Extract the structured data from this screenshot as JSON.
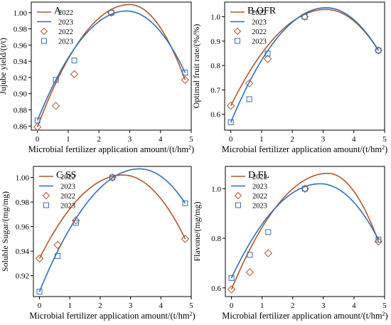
{
  "figure": {
    "colors": {
      "2022": "#b5562a",
      "2023": "#2f6fbd",
      "axis": "#000000"
    }
  },
  "chart_data": [
    {
      "id": "A",
      "type": "scatter",
      "panel_label": "A",
      "xlabel": "Microbial fertilizer application amount/(t/hm²)",
      "ylabel": "Jujube yield/(t/t)",
      "xlim": [
        -0.2,
        5
      ],
      "ylim": [
        0.855,
        1.013
      ],
      "xticks": [
        0,
        1,
        2,
        3,
        4,
        5
      ],
      "yticks": [
        0.86,
        0.88,
        0.9,
        0.92,
        0.94,
        0.96,
        0.98,
        1.0
      ],
      "ytick_labels": [
        "0.86",
        "0.88",
        "0.90",
        "0.92",
        "0.94",
        "0.96",
        "0.98",
        "1.00"
      ],
      "legend": {
        "position": "top-left",
        "entries": [
          "2022",
          "2023",
          "2022",
          "2023"
        ]
      },
      "x": [
        0,
        0.6,
        1.2,
        2.4,
        4.8
      ],
      "series": [
        {
          "name": "2022",
          "marker": "diamond",
          "fit": "line",
          "values": [
            0.859,
            0.885,
            0.924,
            1.0,
            0.917
          ]
        },
        {
          "name": "2023",
          "marker": "square",
          "fit": "line",
          "values": [
            0.867,
            0.917,
            0.941,
            1.0,
            0.926
          ]
        }
      ],
      "fit_peaks": [
        {
          "name": "2022",
          "x": 3.0,
          "y": 1.01
        },
        {
          "name": "2023",
          "x": 2.9,
          "y": 1.002
        }
      ]
    },
    {
      "id": "B",
      "type": "scatter",
      "panel_label": "B OFR",
      "xlabel": "Microbial fertilizer application amount/(t/hm²)",
      "ylabel": "Optimal fruit rate/(%/%)",
      "xlim": [
        -0.2,
        5
      ],
      "ylim": [
        0.535,
        1.06
      ],
      "xticks": [
        0,
        1,
        2,
        3,
        4,
        5
      ],
      "yticks": [
        0.6,
        0.7,
        0.8,
        0.9,
        1.0
      ],
      "ytick_labels": [
        "0.6",
        "0.7",
        "0.8",
        "0.9",
        "1.0"
      ],
      "legend": {
        "position": "top-left",
        "entries": [
          "2022",
          "2023",
          "2022",
          "2023"
        ]
      },
      "x": [
        0,
        0.6,
        1.2,
        2.4,
        4.8
      ],
      "series": [
        {
          "name": "2022",
          "marker": "diamond",
          "fit": "line",
          "values": [
            0.635,
            0.727,
            0.827,
            1.0,
            0.862
          ]
        },
        {
          "name": "2023",
          "marker": "square",
          "fit": "line",
          "values": [
            0.567,
            0.662,
            0.849,
            1.0,
            0.862
          ]
        }
      ],
      "fit_peaks": [
        {
          "name": "2022",
          "x": 3.1,
          "y": 1.03
        },
        {
          "name": "2023",
          "x": 3.1,
          "y": 1.037
        }
      ]
    },
    {
      "id": "C",
      "type": "scatter",
      "panel_label": "C SS",
      "xlabel": "Microbial fertilizer application amount/(t/hm²)",
      "ylabel": "Soluble Sugar/(mg/mg)",
      "xlim": [
        -0.2,
        5
      ],
      "ylim": [
        0.903,
        1.009
      ],
      "xticks": [
        0,
        1,
        2,
        3,
        4,
        5
      ],
      "yticks": [
        0.92,
        0.94,
        0.96,
        0.98,
        1.0
      ],
      "ytick_labels": [
        "0.92",
        "0.94",
        "0.96",
        "0.98",
        "1.00"
      ],
      "legend": {
        "position": "top-left",
        "entries": [
          "2022",
          "2023",
          "2022",
          "2023"
        ]
      },
      "x": [
        0,
        0.6,
        1.2,
        2.4,
        4.8
      ],
      "series": [
        {
          "name": "2022",
          "marker": "diamond",
          "fit": "line",
          "values": [
            0.934,
            0.945,
            0.965,
            1.0,
            0.95
          ]
        },
        {
          "name": "2023",
          "marker": "square",
          "fit": "line",
          "values": [
            0.907,
            0.936,
            0.963,
            1.0,
            0.979
          ]
        }
      ],
      "fit_peaks": [
        {
          "name": "2022",
          "x": 2.75,
          "y": 1.002
        },
        {
          "name": "2023",
          "x": 3.3,
          "y": 1.007
        }
      ]
    },
    {
      "id": "D",
      "type": "scatter",
      "panel_label": "D FL",
      "xlabel": "Microbial fertilizer application amount/(t/hm²)",
      "ylabel": "Flavone/(mg/mg)",
      "xlim": [
        -0.2,
        5
      ],
      "ylim": [
        0.565,
        1.09
      ],
      "xticks": [
        0,
        1,
        2,
        3,
        4,
        5
      ],
      "yticks": [
        0.6,
        0.8,
        1.0
      ],
      "ytick_labels": [
        "0.6",
        "0.8",
        "1.0"
      ],
      "legend": {
        "position": "top-left",
        "entries": [
          "2022",
          "2023",
          "2022",
          "2023"
        ]
      },
      "x": [
        0,
        0.6,
        1.2,
        2.4,
        4.8
      ],
      "series": [
        {
          "name": "2022",
          "marker": "diamond",
          "fit": "line",
          "values": [
            0.594,
            0.663,
            0.74,
            1.0,
            0.787
          ]
        },
        {
          "name": "2023",
          "marker": "square",
          "fit": "line",
          "values": [
            0.64,
            0.733,
            0.825,
            1.0,
            0.795
          ]
        }
      ],
      "fit_peaks": [
        {
          "name": "2022",
          "x": 3.15,
          "y": 1.062
        },
        {
          "name": "2023",
          "x": 2.9,
          "y": 1.02
        }
      ]
    }
  ]
}
